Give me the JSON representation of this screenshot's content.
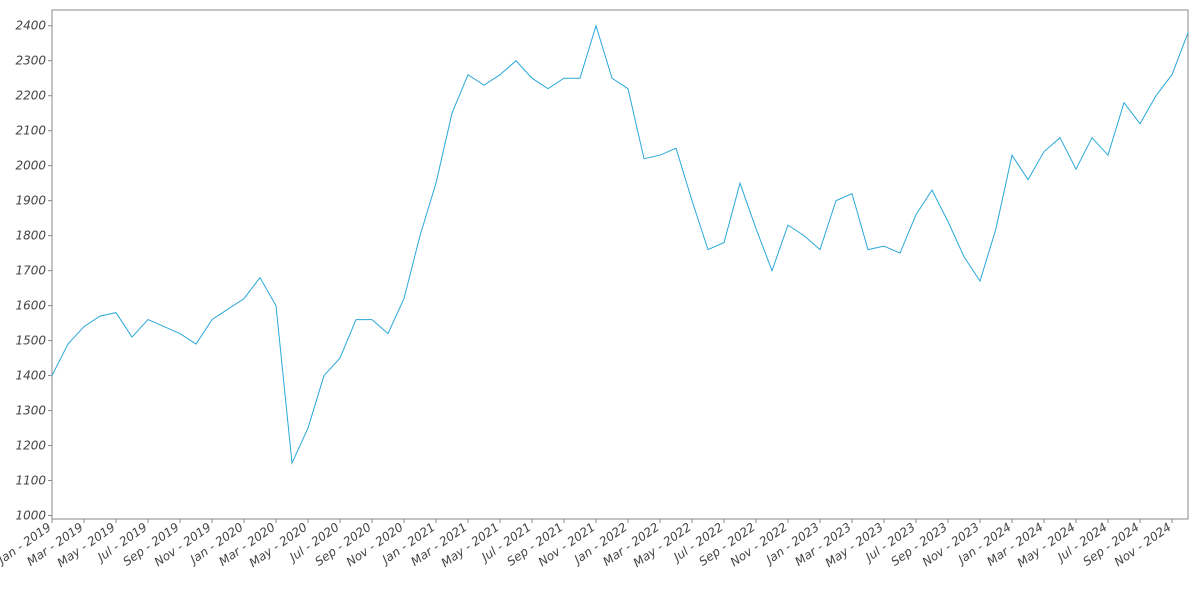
{
  "chart_data": {
    "type": "line",
    "x": [
      "2019-01",
      "2019-02",
      "2019-03",
      "2019-04",
      "2019-05",
      "2019-06",
      "2019-07",
      "2019-08",
      "2019-09",
      "2019-10",
      "2019-11",
      "2019-12",
      "2020-01",
      "2020-02",
      "2020-03",
      "2020-04",
      "2020-05",
      "2020-06",
      "2020-07",
      "2020-08",
      "2020-09",
      "2020-10",
      "2020-11",
      "2020-12",
      "2021-01",
      "2021-02",
      "2021-03",
      "2021-04",
      "2021-05",
      "2021-06",
      "2021-07",
      "2021-08",
      "2021-09",
      "2021-10",
      "2021-11",
      "2021-12",
      "2022-01",
      "2022-02",
      "2022-03",
      "2022-04",
      "2022-05",
      "2022-06",
      "2022-07",
      "2022-08",
      "2022-09",
      "2022-10",
      "2022-11",
      "2022-12",
      "2023-01",
      "2023-02",
      "2023-03",
      "2023-04",
      "2023-05",
      "2023-06",
      "2023-07",
      "2023-08",
      "2023-09",
      "2023-10",
      "2023-11",
      "2023-12",
      "2024-01",
      "2024-02",
      "2024-03",
      "2024-04",
      "2024-05",
      "2024-06",
      "2024-07",
      "2024-08",
      "2024-09",
      "2024-10",
      "2024-11",
      "2024-12"
    ],
    "series": [
      {
        "color": "#29a8d8",
        "values": [
          1400,
          1490,
          1540,
          1570,
          1580,
          1510,
          1560,
          1540,
          1520,
          1490,
          1560,
          1590,
          1620,
          1680,
          1600,
          1150,
          1250,
          1400,
          1450,
          1560,
          1560,
          1520,
          1620,
          1800,
          1950,
          2150,
          2260,
          2230,
          2260,
          2300,
          2250,
          2220,
          2250,
          2250,
          2400,
          2250,
          2220,
          2020,
          2030,
          2050,
          1900,
          1760,
          1780,
          1950,
          1820,
          1700,
          1830,
          1800,
          1760,
          1900,
          1920,
          1760,
          1770,
          1750,
          1860,
          1930,
          1840,
          1740,
          1670,
          1820,
          2030,
          1960,
          2040,
          2080,
          1990,
          2080,
          2030,
          2180,
          2120,
          2200,
          2260,
          2380
        ]
      }
    ],
    "xlim": [
      "2019-01",
      "2024-12"
    ],
    "xticks": [
      {
        "value": "2019-01",
        "label": "Jan - 2019"
      },
      {
        "value": "2019-03",
        "label": "Mar - 2019"
      },
      {
        "value": "2019-05",
        "label": "May - 2019"
      },
      {
        "value": "2019-07",
        "label": "Jul - 2019"
      },
      {
        "value": "2019-09",
        "label": "Sep - 2019"
      },
      {
        "value": "2019-11",
        "label": "Nov - 2019"
      },
      {
        "value": "2020-01",
        "label": "Jan - 2020"
      },
      {
        "value": "2020-03",
        "label": "Mar - 2020"
      },
      {
        "value": "2020-05",
        "label": "May - 2020"
      },
      {
        "value": "2020-07",
        "label": "Jul - 2020"
      },
      {
        "value": "2020-09",
        "label": "Sep - 2020"
      },
      {
        "value": "2020-11",
        "label": "Nov - 2020"
      },
      {
        "value": "2021-01",
        "label": "Jan - 2021"
      },
      {
        "value": "2021-03",
        "label": "Mar - 2021"
      },
      {
        "value": "2021-05",
        "label": "May - 2021"
      },
      {
        "value": "2021-07",
        "label": "Jul - 2021"
      },
      {
        "value": "2021-09",
        "label": "Sep - 2021"
      },
      {
        "value": "2021-11",
        "label": "Nov - 2021"
      },
      {
        "value": "2022-01",
        "label": "Jan - 2022"
      },
      {
        "value": "2022-03",
        "label": "Mar - 2022"
      },
      {
        "value": "2022-05",
        "label": "May - 2022"
      },
      {
        "value": "2022-07",
        "label": "Jul - 2022"
      },
      {
        "value": "2022-09",
        "label": "Sep - 2022"
      },
      {
        "value": "2022-11",
        "label": "Nov - 2022"
      },
      {
        "value": "2023-01",
        "label": "Jan - 2023"
      },
      {
        "value": "2023-03",
        "label": "Mar - 2023"
      },
      {
        "value": "2023-05",
        "label": "May - 2023"
      },
      {
        "value": "2023-07",
        "label": "Jul - 2023"
      },
      {
        "value": "2023-09",
        "label": "Sep - 2023"
      },
      {
        "value": "2023-11",
        "label": "Nov - 2023"
      },
      {
        "value": "2024-01",
        "label": "Jan - 2024"
      },
      {
        "value": "2024-03",
        "label": "Mar - 2024"
      },
      {
        "value": "2024-05",
        "label": "May - 2024"
      },
      {
        "value": "2024-07",
        "label": "Jul - 2024"
      },
      {
        "value": "2024-09",
        "label": "Sep - 2024"
      },
      {
        "value": "2024-11",
        "label": "Nov - 2024"
      }
    ],
    "ylim": [
      990,
      2445
    ],
    "yticks": [
      1000,
      1100,
      1200,
      1300,
      1400,
      1500,
      1600,
      1700,
      1800,
      1900,
      2000,
      2100,
      2200,
      2300,
      2400
    ],
    "grid": false
  }
}
